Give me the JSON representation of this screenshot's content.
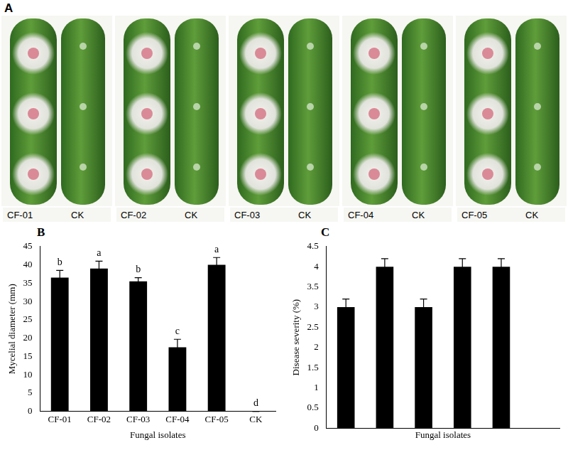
{
  "photo": {
    "panel": "A",
    "labels": [
      [
        "CF-01",
        "CK"
      ],
      [
        "CF-02",
        "CK"
      ],
      [
        "CF-03",
        "CK"
      ],
      [
        "CF-04",
        "CK"
      ],
      [
        "CF-05",
        "CK"
      ]
    ]
  },
  "chart_data": [
    {
      "type": "bar",
      "panel": "B",
      "categories": [
        "CF-01",
        "CF-02",
        "CF-03",
        "CF-04",
        "CF-05",
        "CK"
      ],
      "values": [
        36.5,
        39,
        35.5,
        17.5,
        40,
        0
      ],
      "errors": [
        2,
        2,
        1,
        2.2,
        2,
        0
      ],
      "annotations": [
        "b",
        "a",
        "b",
        "c",
        "a",
        "d"
      ],
      "color": "#000000",
      "x_label": "Fungal isolates",
      "y_label": "Mycelial diameter (mm)",
      "ylim": [
        0,
        45
      ],
      "yticks": [
        0,
        5,
        10,
        15,
        20,
        25,
        30,
        35,
        40,
        45
      ],
      "grid": false
    },
    {
      "type": "bar",
      "panel": "C",
      "categories": [
        null,
        null,
        null,
        null,
        null,
        null
      ],
      "values": [
        3,
        4,
        3,
        4,
        4,
        null
      ],
      "errors": [
        0.2,
        0.2,
        0.2,
        0.2,
        0.2,
        null
      ],
      "color": "#000000",
      "x_label": "Fungal isolates",
      "y_label": "Disease severity (%)",
      "ylim": [
        0,
        4.5
      ],
      "yticks": [
        0,
        0.5,
        1,
        1.5,
        2,
        2.5,
        3,
        3.5,
        4,
        4.5
      ],
      "grid": false,
      "tick_labels": "y"
    }
  ]
}
